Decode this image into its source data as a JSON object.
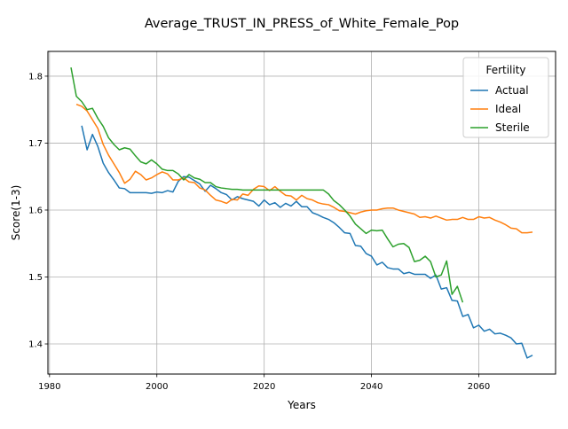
{
  "chart_data": {
    "type": "line",
    "title": "Average_TRUST_IN_PRESS_of_White_Female_Pop",
    "xlabel": "Years",
    "ylabel": "Score(1-3)",
    "xlim": [
      1979.7,
      2074.3
    ],
    "ylim": [
      1.355,
      1.837
    ],
    "xticks": [
      1980,
      2000,
      2020,
      2040,
      2060
    ],
    "yticks": [
      1.4,
      1.5,
      1.6,
      1.7,
      1.8
    ],
    "xtick_labels": [
      "1980",
      "2000",
      "2020",
      "2040",
      "2060"
    ],
    "ytick_labels": [
      "1.4",
      "1.5",
      "1.6",
      "1.7",
      "1.8"
    ],
    "grid": true,
    "legend": {
      "title": "Fertility",
      "position": "top-right"
    },
    "series": [
      {
        "name": "Actual",
        "color": "#1f77b4",
        "x": [
          1986,
          1987,
          1988,
          1989,
          1990,
          1991,
          1992,
          1993,
          1994,
          1995,
          1996,
          1997,
          1998,
          1999,
          2000,
          2001,
          2002,
          2003,
          2004,
          2005,
          2006,
          2007,
          2008,
          2009,
          2010,
          2011,
          2012,
          2013,
          2014,
          2015,
          2016,
          2017,
          2018,
          2019,
          2020,
          2021,
          2022,
          2023,
          2024,
          2025,
          2026,
          2027,
          2028,
          2029,
          2030,
          2031,
          2032,
          2033,
          2034,
          2035,
          2036,
          2037,
          2038,
          2039,
          2040,
          2041,
          2042,
          2043,
          2044,
          2045,
          2046,
          2047,
          2048,
          2049,
          2050,
          2051,
          2052,
          2053,
          2054,
          2055,
          2056,
          2057,
          2058,
          2059,
          2060,
          2061,
          2062,
          2063,
          2064,
          2065,
          2066,
          2067,
          2068,
          2069,
          2070
        ],
        "values": [
          1.726,
          1.69,
          1.713,
          1.695,
          1.67,
          1.656,
          1.645,
          1.633,
          1.632,
          1.626,
          1.626,
          1.626,
          1.626,
          1.625,
          1.627,
          1.626,
          1.629,
          1.627,
          1.643,
          1.65,
          1.649,
          1.644,
          1.639,
          1.628,
          1.637,
          1.632,
          1.626,
          1.623,
          1.615,
          1.62,
          1.617,
          1.615,
          1.613,
          1.606,
          1.615,
          1.608,
          1.611,
          1.604,
          1.61,
          1.606,
          1.613,
          1.605,
          1.605,
          1.596,
          1.593,
          1.589,
          1.586,
          1.581,
          1.574,
          1.566,
          1.565,
          1.547,
          1.546,
          1.535,
          1.531,
          1.518,
          1.522,
          1.514,
          1.512,
          1.512,
          1.505,
          1.507,
          1.504,
          1.504,
          1.504,
          1.498,
          1.503,
          1.482,
          1.484,
          1.465,
          1.464,
          1.441,
          1.444,
          1.424,
          1.428,
          1.419,
          1.422,
          1.415,
          1.416,
          1.413,
          1.409,
          1.4,
          1.401,
          1.379,
          1.383
        ]
      },
      {
        "name": "Ideal",
        "color": "#ff7f0e",
        "x": [
          1985,
          1986,
          1987,
          1988,
          1989,
          1990,
          1991,
          1992,
          1993,
          1994,
          1995,
          1996,
          1997,
          1998,
          1999,
          2000,
          2001,
          2002,
          2003,
          2004,
          2005,
          2006,
          2007,
          2008,
          2009,
          2010,
          2011,
          2012,
          2013,
          2014,
          2015,
          2016,
          2017,
          2018,
          2019,
          2020,
          2021,
          2022,
          2023,
          2024,
          2025,
          2026,
          2027,
          2028,
          2029,
          2030,
          2031,
          2032,
          2033,
          2034,
          2035,
          2036,
          2037,
          2038,
          2039,
          2040,
          2041,
          2042,
          2043,
          2044,
          2045,
          2046,
          2047,
          2048,
          2049,
          2050,
          2051,
          2052,
          2053,
          2054,
          2055,
          2056,
          2057,
          2058,
          2059,
          2060,
          2061,
          2062,
          2063,
          2064,
          2065,
          2066,
          2067,
          2068,
          2069,
          2070
        ],
        "values": [
          1.758,
          1.755,
          1.748,
          1.735,
          1.722,
          1.698,
          1.682,
          1.669,
          1.656,
          1.64,
          1.646,
          1.658,
          1.653,
          1.645,
          1.648,
          1.653,
          1.657,
          1.654,
          1.645,
          1.645,
          1.648,
          1.642,
          1.641,
          1.633,
          1.63,
          1.622,
          1.615,
          1.613,
          1.61,
          1.616,
          1.615,
          1.624,
          1.622,
          1.631,
          1.636,
          1.635,
          1.629,
          1.635,
          1.628,
          1.622,
          1.621,
          1.615,
          1.622,
          1.617,
          1.615,
          1.611,
          1.609,
          1.608,
          1.604,
          1.599,
          1.598,
          1.596,
          1.594,
          1.597,
          1.599,
          1.6,
          1.6,
          1.602,
          1.603,
          1.603,
          1.6,
          1.598,
          1.596,
          1.594,
          1.589,
          1.59,
          1.588,
          1.591,
          1.588,
          1.585,
          1.586,
          1.586,
          1.589,
          1.586,
          1.586,
          1.59,
          1.588,
          1.589,
          1.585,
          1.582,
          1.578,
          1.573,
          1.572,
          1.566,
          1.566,
          1.567
        ]
      },
      {
        "name": "Sterile",
        "color": "#2ca02c",
        "x": [
          1984,
          1985,
          1986,
          1987,
          1988,
          1989,
          1990,
          1991,
          1992,
          1993,
          1994,
          1995,
          1996,
          1997,
          1998,
          1999,
          2000,
          2001,
          2002,
          2003,
          2004,
          2005,
          2006,
          2007,
          2008,
          2009,
          2010,
          2011,
          2012,
          2013,
          2014,
          2015,
          2016,
          2017,
          2018,
          2019,
          2020,
          2021,
          2022,
          2023,
          2024,
          2025,
          2026,
          2027,
          2028,
          2029,
          2030,
          2031,
          2032,
          2033,
          2034,
          2035,
          2036,
          2037,
          2038,
          2039,
          2040,
          2041,
          2042,
          2043,
          2044,
          2045,
          2046,
          2047,
          2048,
          2049,
          2050,
          2051,
          2052,
          2053,
          2054,
          2055,
          2056,
          2057
        ],
        "values": [
          1.813,
          1.77,
          1.762,
          1.75,
          1.752,
          1.737,
          1.725,
          1.708,
          1.698,
          1.69,
          1.693,
          1.691,
          1.681,
          1.672,
          1.669,
          1.675,
          1.669,
          1.661,
          1.659,
          1.659,
          1.654,
          1.645,
          1.653,
          1.648,
          1.646,
          1.641,
          1.641,
          1.635,
          1.633,
          1.632,
          1.631,
          1.631,
          1.63,
          1.63,
          1.63,
          1.63,
          1.63,
          1.63,
          1.63,
          1.63,
          1.63,
          1.63,
          1.63,
          1.63,
          1.63,
          1.63,
          1.63,
          1.63,
          1.624,
          1.614,
          1.608,
          1.6,
          1.591,
          1.579,
          1.572,
          1.565,
          1.57,
          1.569,
          1.57,
          1.557,
          1.545,
          1.549,
          1.55,
          1.544,
          1.523,
          1.525,
          1.531,
          1.523,
          1.5,
          1.503,
          1.524,
          1.474,
          1.486,
          1.462
        ]
      }
    ]
  }
}
